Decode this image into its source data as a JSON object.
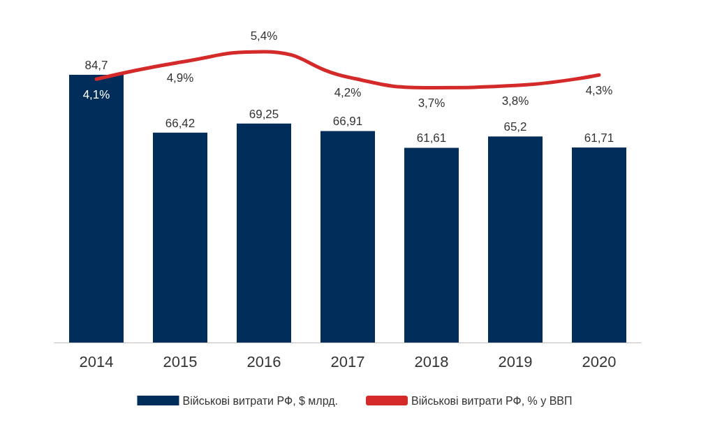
{
  "chart_data": {
    "type": "bar",
    "categories": [
      "2014",
      "2015",
      "2016",
      "2017",
      "2018",
      "2019",
      "2020"
    ],
    "series": [
      {
        "name": "Військові витрати РФ, $ млрд.",
        "color": "#002d5a",
        "values": [
          84.7,
          66.42,
          69.25,
          66.91,
          61.61,
          65.2,
          61.71
        ],
        "value_labels": [
          "84,7",
          "66,42",
          "69,25",
          "66,91",
          "61,61",
          "65,2",
          "61,71"
        ]
      },
      {
        "name": "Військові витрати РФ, % у ВВП",
        "type": "line",
        "axis": "y2",
        "color": "#d42a2a",
        "values": [
          4.1,
          4.9,
          5.4,
          4.2,
          3.7,
          3.8,
          4.3
        ],
        "value_labels": [
          "4,1%",
          "4,9%",
          "5,4%",
          "4,2%",
          "3,7%",
          "3,8%",
          "4,3%"
        ]
      }
    ],
    "grid": false,
    "legend": "bottom",
    "marker": "none",
    "line_style": "solid"
  }
}
